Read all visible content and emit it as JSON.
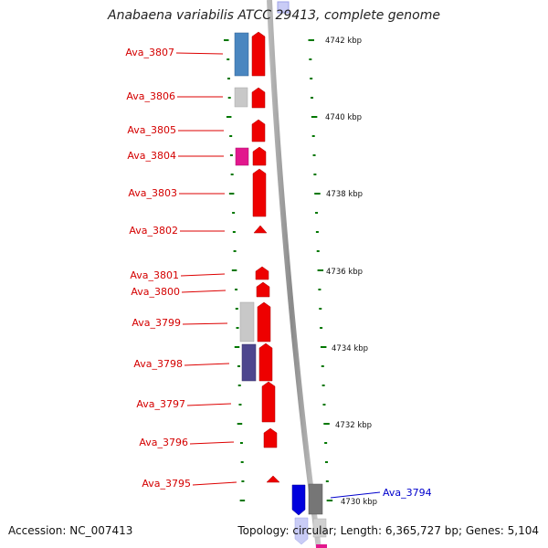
{
  "map": {
    "title": "Anabaena variabilis ATCC 29413, complete genome",
    "accession": "Accession: NC_007413",
    "summary": "Topology: circular; Length: 6,365,727 bp; Genes: 5,104"
  },
  "scale": {
    "tick_labels": [
      "4742 kbp",
      "4740 kbp",
      "4738 kbp",
      "4736 kbp",
      "4734 kbp",
      "4732 kbp",
      "4730 kbp"
    ]
  },
  "genes_left": [
    "Ava_3807",
    "Ava_3806",
    "Ava_3805",
    "Ava_3804",
    "Ava_3803",
    "Ava_3802",
    "Ava_3801",
    "Ava_3800",
    "Ava_3799",
    "Ava_3798",
    "Ava_3797",
    "Ava_3796",
    "Ava_3795"
  ],
  "genes_right": [
    "Ava_3794"
  ],
  "colors": {
    "reverse_strand": "#ee0000",
    "forward_strand": "#0000dd",
    "tick": "#007700",
    "backbone": "#8c8c8c",
    "cog_steelblue": "#4a86c0",
    "cog_lightgray": "#c8c8c8",
    "cog_magenta": "#e2178d",
    "cog_slateblue": "#4d468e",
    "cog_darkgray": "#767676"
  }
}
